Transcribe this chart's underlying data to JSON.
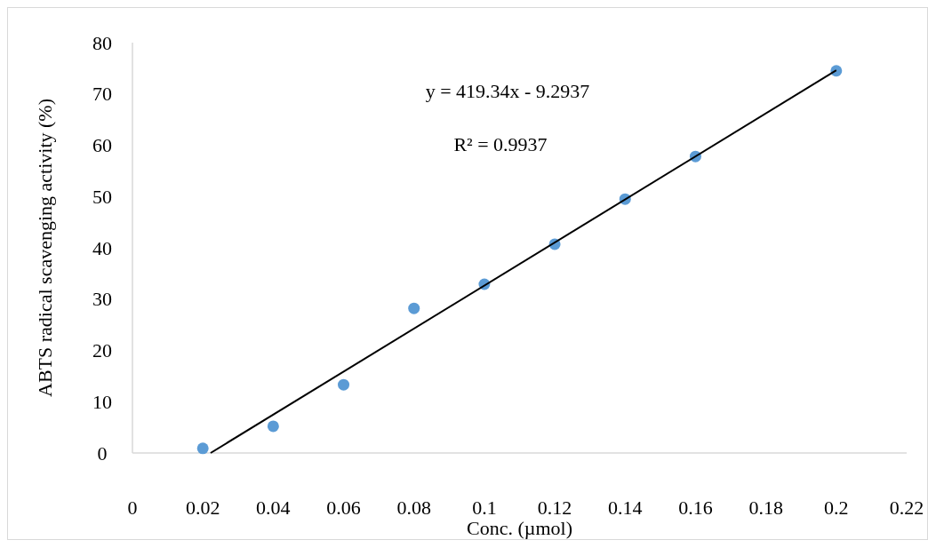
{
  "chart_data": {
    "type": "scatter",
    "xlabel": "Conc. (µmol)",
    "ylabel": "ABTS radical scavenging activity (%)",
    "annotations": [
      "y = 419.34x - 9.2937",
      "R² = 0.9937"
    ],
    "xlim": [
      0,
      0.22
    ],
    "xticks": [
      0,
      0.02,
      0.04,
      0.06,
      0.08,
      0.1,
      0.12,
      0.14,
      0.16,
      0.18,
      0.2,
      0.22
    ],
    "ylim": [
      0,
      80
    ],
    "yticks": [
      0,
      10,
      20,
      30,
      40,
      50,
      60,
      70,
      80
    ],
    "grid": false,
    "series": [
      {
        "marker": "circle",
        "color": "#5b9bd5",
        "x": [
          0.02,
          0.04,
          0.06,
          0.08,
          0.1,
          0.12,
          0.14,
          0.16,
          0.2
        ],
        "values": [
          0.9,
          5.2,
          13.3,
          28.2,
          32.9,
          40.7,
          49.5,
          57.8,
          74.5
        ]
      },
      {
        "type": "line",
        "color": "#000000",
        "line_style": "solid",
        "x": [
          0.0222,
          0.2
        ],
        "values": [
          0,
          74.6
        ]
      }
    ]
  }
}
